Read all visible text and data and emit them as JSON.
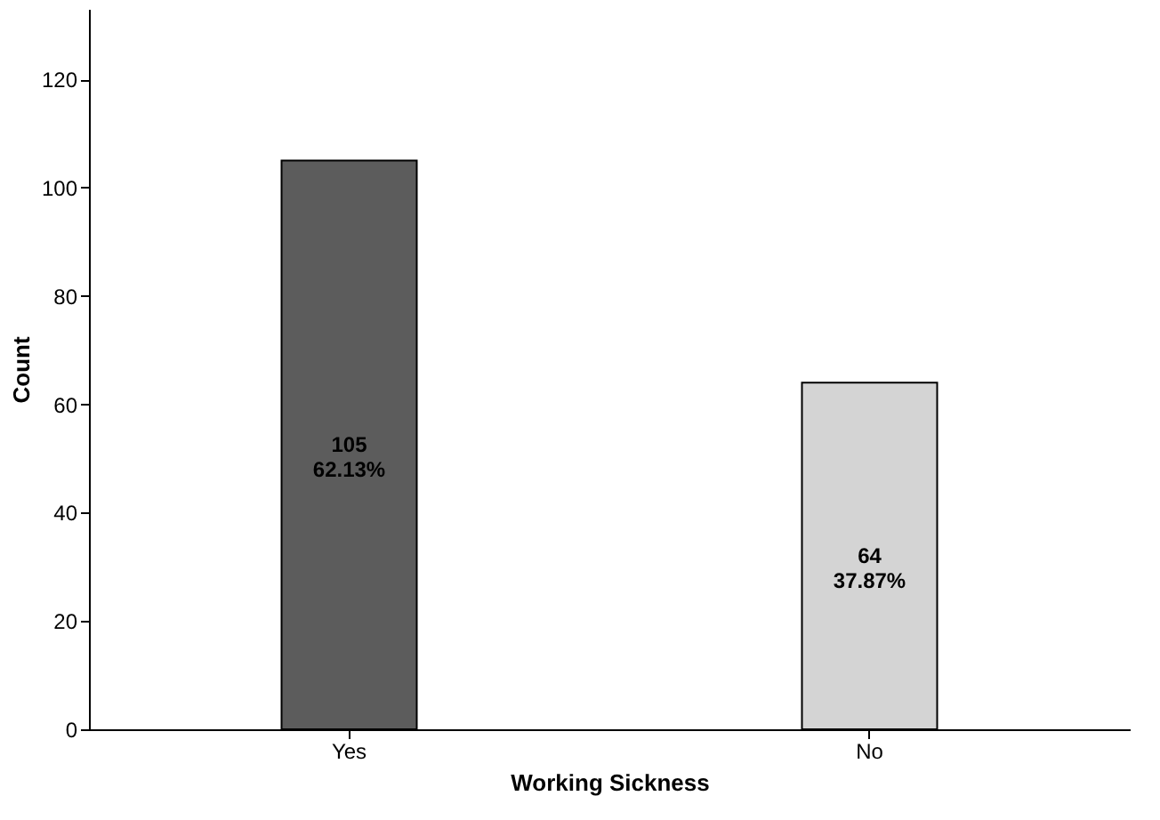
{
  "chart_data": {
    "type": "bar",
    "xlabel": "Working Sickness",
    "ylabel": "Count",
    "categories": [
      "Yes",
      "No"
    ],
    "values": [
      105,
      64
    ],
    "colors": [
      "#5c5c5c",
      "#d4d4d4"
    ],
    "value_labels": [
      "105\n62.13%",
      "64\n37.87%"
    ],
    "ylim": [
      0,
      133
    ],
    "yticks": [
      0,
      20,
      40,
      60,
      80,
      100,
      120
    ],
    "grid": false
  }
}
